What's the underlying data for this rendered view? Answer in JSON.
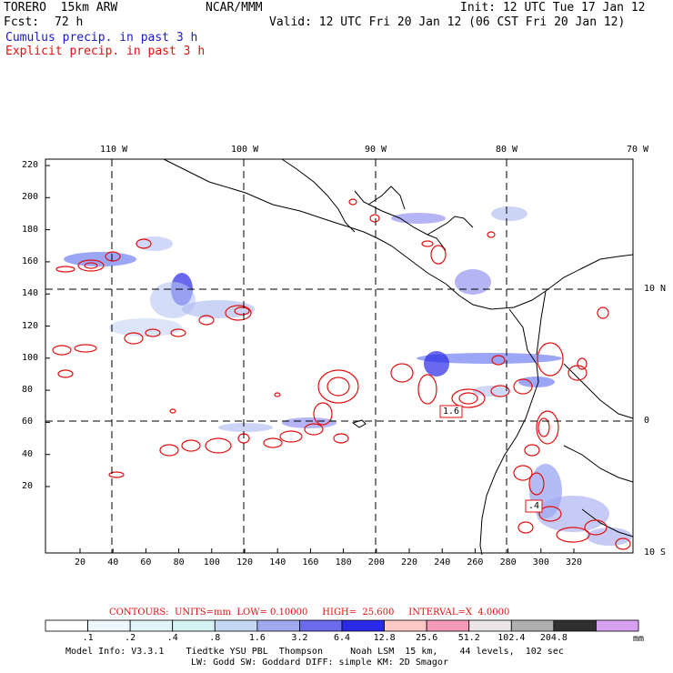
{
  "header": {
    "model": "TORERO  15km ARW",
    "center": "NCAR/MMM",
    "init": "Init: 12 UTC Tue 17 Jan 12",
    "fcst_label": "Fcst:",
    "fcst_value": "72 h",
    "valid": "Valid: 12 UTC Fri 20 Jan 12 (06 CST Fri 20 Jan 12)",
    "cumulus": "Cumulus precip. in past 3 h",
    "explicit": "Explicit precip. in past 3 h"
  },
  "top_lon_labels": [
    "110 W",
    "100 W",
    "90 W",
    "80 W",
    "70 W"
  ],
  "right_lat_labels": [
    "10 N",
    "0",
    "10 S"
  ],
  "y_ticks": [
    "220",
    "200",
    "180",
    "160",
    "140",
    "120",
    "100",
    "80",
    "60",
    "40",
    "20"
  ],
  "x_ticks": [
    "20",
    "40",
    "60",
    "80",
    "100",
    "120",
    "140",
    "160",
    "180",
    "200",
    "220",
    "240",
    "260",
    "280",
    "300",
    "320"
  ],
  "map_labels": [
    "1.6",
    ".4"
  ],
  "contour_info": "CONTOURS:  UNITS=mm  LOW= 0.10000     HIGH=  25.600     INTERVAL=X  4.0000",
  "legend": {
    "unit": "mm",
    "labels": [
      ".1",
      ".2",
      ".4",
      ".8",
      "1.6",
      "3.2",
      "6.4",
      "12.8",
      "25.6",
      "51.2",
      "102.4",
      "204.8"
    ],
    "colors": [
      "#ffffff",
      "#eef7ff",
      "#e0f5f8",
      "#d6f2f4",
      "#c4d8f4",
      "#a0a8ee",
      "#6b6bec",
      "#2a2ae6",
      "#ffc8c8",
      "#f59ab8",
      "#ebe4e8",
      "#b0b0b0",
      "#303030",
      "#d8a0f0"
    ]
  },
  "model_info": {
    "line1": "Model Info: V3.3.1    Tiedtke YSU PBL  Thompson     Noah LSM  15 km,    44 levels,  102 sec",
    "line2": "LW: Godd SW: Goddard DIFF: simple KM: 2D Smagor"
  }
}
